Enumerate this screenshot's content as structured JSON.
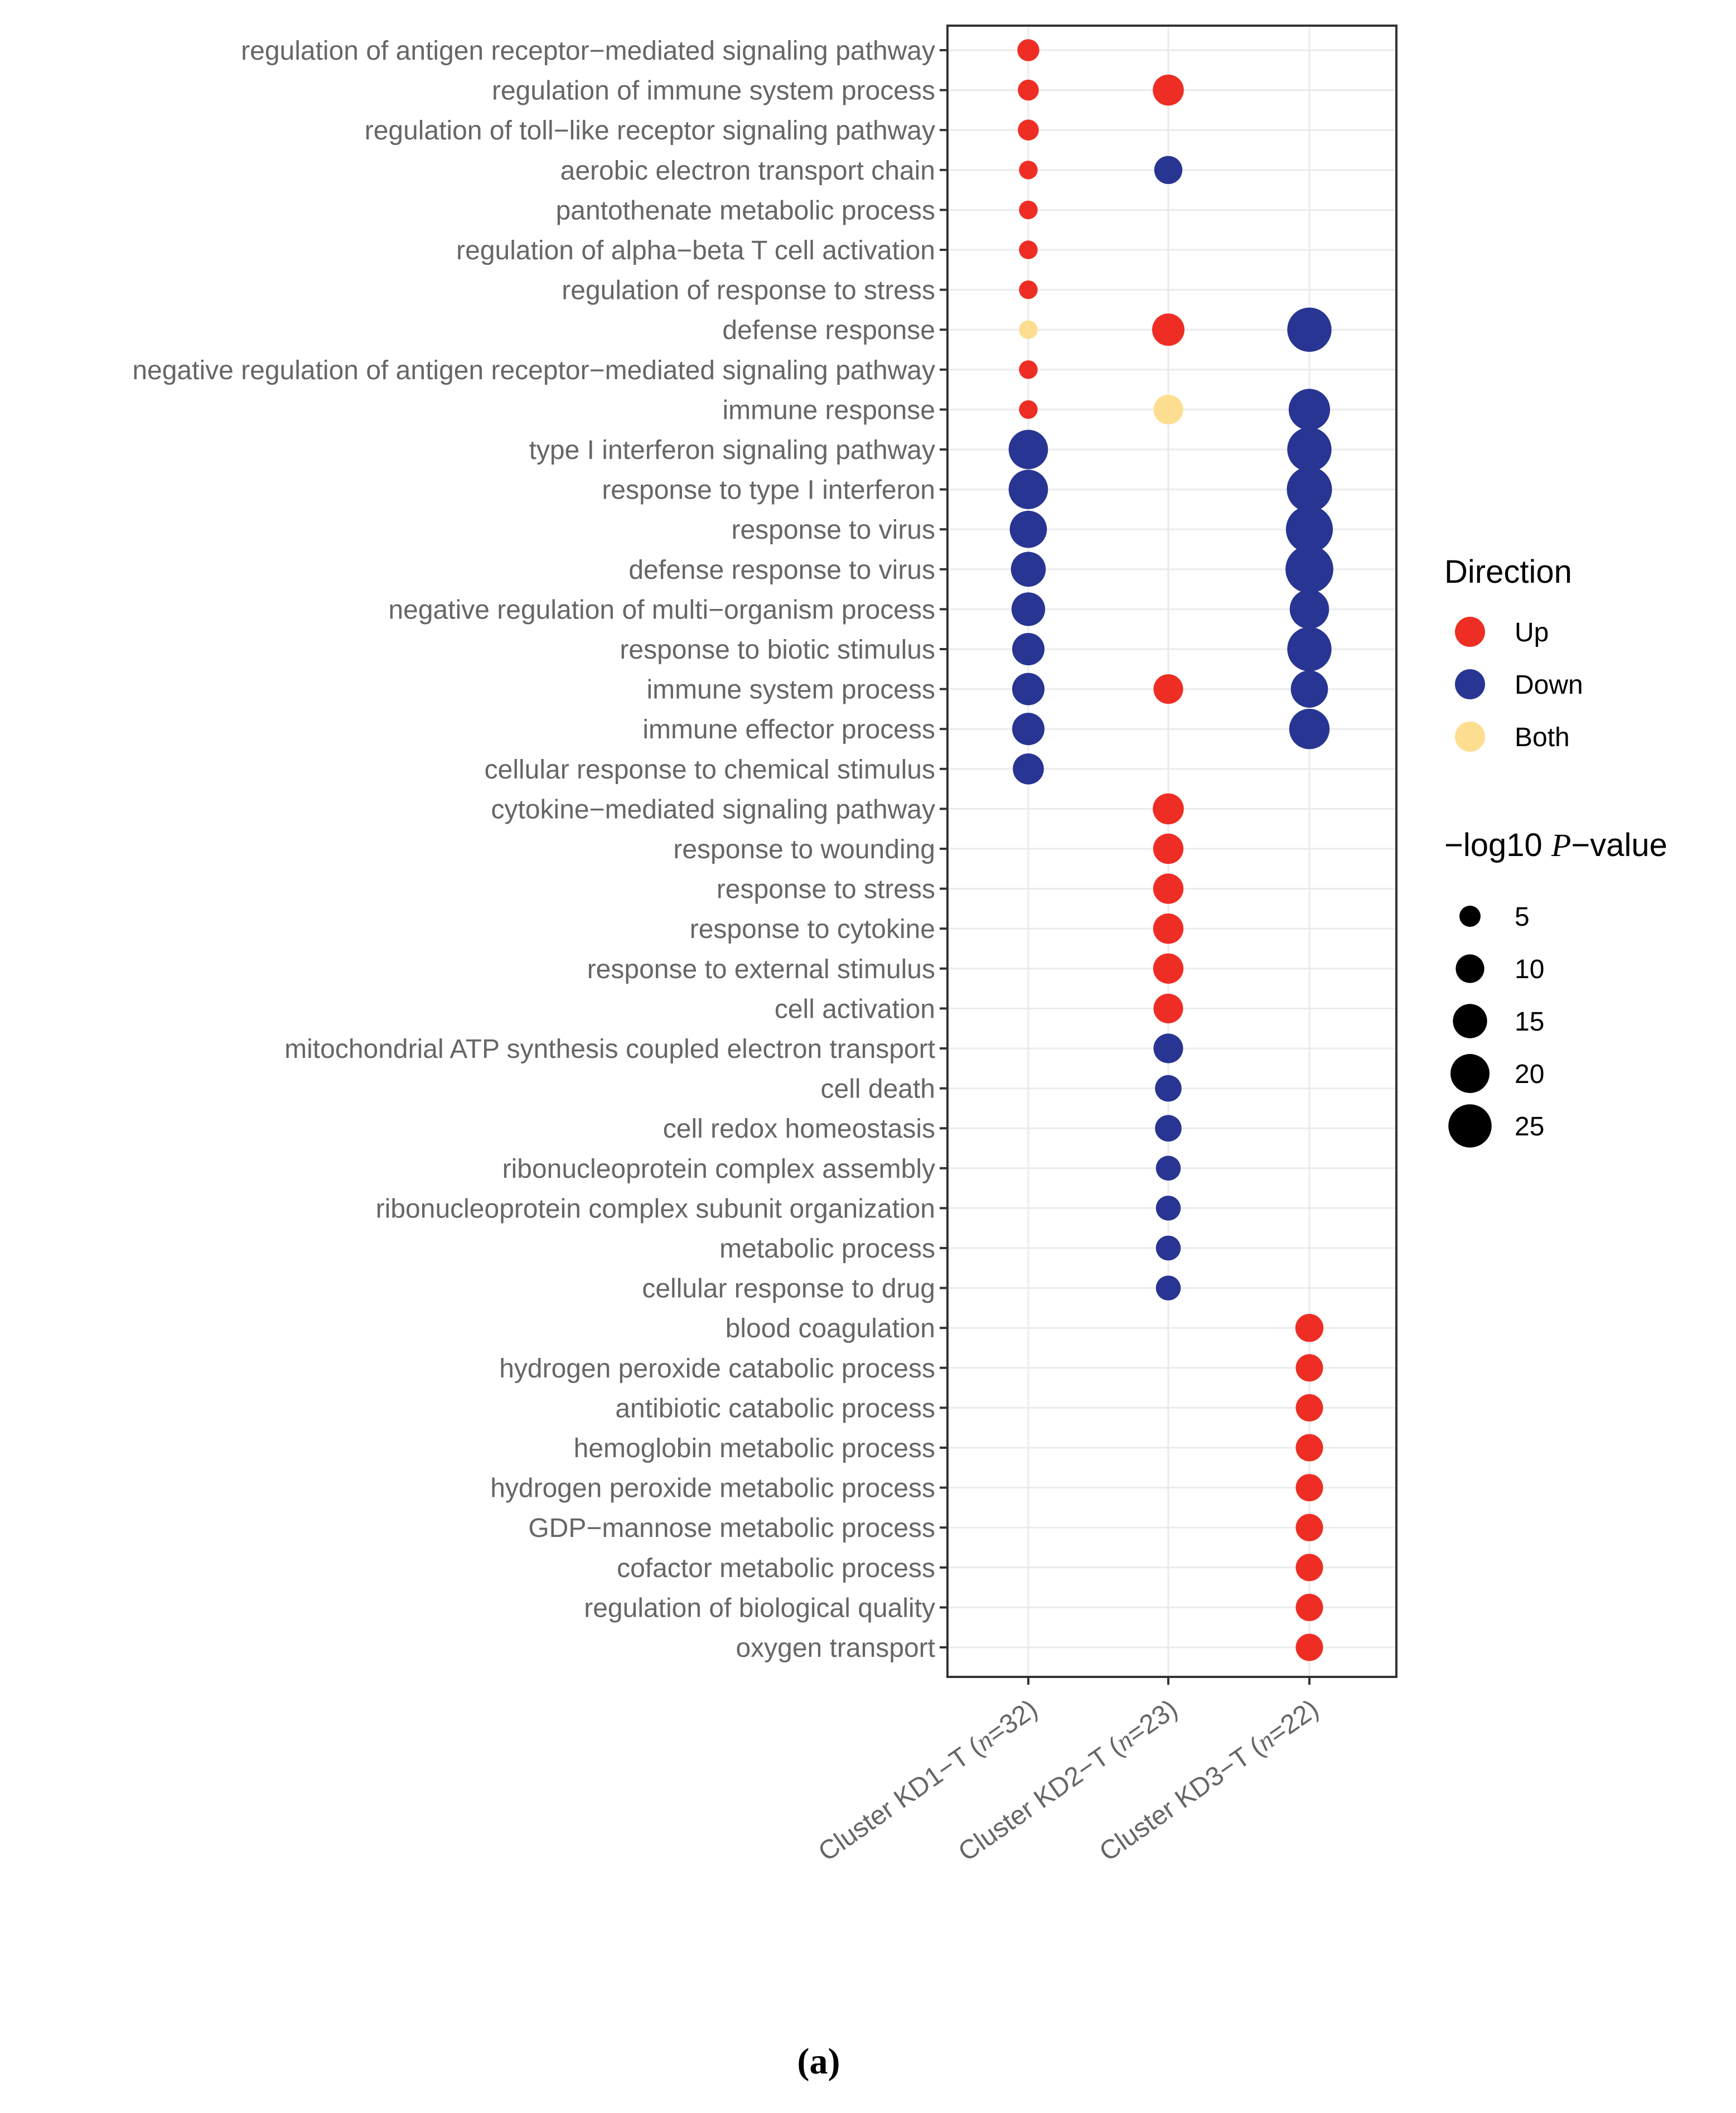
{
  "chart_data": {
    "type": "scatter",
    "caption": "(a)",
    "categories_y": [
      "regulation of antigen receptor−mediated signaling pathway",
      "regulation of immune system process",
      "regulation of toll−like receptor signaling pathway",
      "aerobic electron transport chain",
      "pantothenate metabolic process",
      "regulation of alpha−beta T cell activation",
      "regulation of response to stress",
      "defense response",
      "negative regulation of antigen receptor−mediated signaling pathway",
      "immune response",
      "type I interferon signaling pathway",
      "response to type I interferon",
      "response to virus",
      "defense response to virus",
      "negative regulation of multi−organism process",
      "response to biotic stimulus",
      "immune system process",
      "immune effector process",
      "cellular response to chemical stimulus",
      "cytokine−mediated signaling pathway",
      "response to wounding",
      "response to stress",
      "response to cytokine",
      "response to external stimulus",
      "cell activation",
      "mitochondrial ATP synthesis coupled electron transport",
      "cell death",
      "cell redox homeostasis",
      "ribonucleoprotein complex assembly",
      "ribonucleoprotein complex subunit organization",
      "metabolic process",
      "cellular response to drug",
      "blood coagulation",
      "hydrogen peroxide catabolic process",
      "antibiotic catabolic process",
      "hemoglobin metabolic process",
      "hydrogen peroxide metabolic process",
      "GDP−mannose metabolic process",
      "cofactor metabolic process",
      "regulation of biological quality",
      "oxygen transport"
    ],
    "categories_x": [
      {
        "prefix": "Cluster KD1−T (",
        "n_symbol": "n",
        "suffix": "=32)"
      },
      {
        "prefix": "Cluster KD2−T (",
        "n_symbol": "n",
        "suffix": "=23)"
      },
      {
        "prefix": "Cluster KD3−T (",
        "n_symbol": "n",
        "suffix": "=22)"
      }
    ],
    "legend_direction": {
      "title": "Direction",
      "entries": [
        {
          "label": "Up",
          "color": "#EE2E24"
        },
        {
          "label": "Down",
          "color": "#283593"
        },
        {
          "label": "Both",
          "color": "#FDDD8F"
        }
      ]
    },
    "legend_size": {
      "title_prefix": "−log10 ",
      "title_symbol": "P",
      "title_suffix": "−value",
      "breaks": [
        5,
        10,
        15,
        20,
        25
      ]
    },
    "size_range": [
      2,
      27
    ],
    "points": [
      {
        "term": 0,
        "cluster": 0,
        "direction": "Up",
        "neglog10p": 4.5
      },
      {
        "term": 1,
        "cluster": 0,
        "direction": "Up",
        "neglog10p": 4
      },
      {
        "term": 2,
        "cluster": 0,
        "direction": "Up",
        "neglog10p": 4
      },
      {
        "term": 3,
        "cluster": 0,
        "direction": "Up",
        "neglog10p": 3
      },
      {
        "term": 4,
        "cluster": 0,
        "direction": "Up",
        "neglog10p": 3
      },
      {
        "term": 5,
        "cluster": 0,
        "direction": "Up",
        "neglog10p": 3
      },
      {
        "term": 6,
        "cluster": 0,
        "direction": "Up",
        "neglog10p": 3
      },
      {
        "term": 7,
        "cluster": 0,
        "direction": "Both",
        "neglog10p": 3
      },
      {
        "term": 8,
        "cluster": 0,
        "direction": "Up",
        "neglog10p": 3
      },
      {
        "term": 9,
        "cluster": 0,
        "direction": "Up",
        "neglog10p": 3
      },
      {
        "term": 10,
        "cluster": 0,
        "direction": "Down",
        "neglog10p": 17
      },
      {
        "term": 11,
        "cluster": 0,
        "direction": "Down",
        "neglog10p": 17
      },
      {
        "term": 12,
        "cluster": 0,
        "direction": "Down",
        "neglog10p": 15
      },
      {
        "term": 13,
        "cluster": 0,
        "direction": "Down",
        "neglog10p": 13
      },
      {
        "term": 14,
        "cluster": 0,
        "direction": "Down",
        "neglog10p": 12
      },
      {
        "term": 15,
        "cluster": 0,
        "direction": "Down",
        "neglog10p": 11
      },
      {
        "term": 16,
        "cluster": 0,
        "direction": "Down",
        "neglog10p": 11
      },
      {
        "term": 17,
        "cluster": 0,
        "direction": "Down",
        "neglog10p": 11
      },
      {
        "term": 18,
        "cluster": 0,
        "direction": "Down",
        "neglog10p": 10
      },
      {
        "term": 1,
        "cluster": 1,
        "direction": "Up",
        "neglog10p": 10
      },
      {
        "term": 3,
        "cluster": 1,
        "direction": "Down",
        "neglog10p": 8
      },
      {
        "term": 7,
        "cluster": 1,
        "direction": "Up",
        "neglog10p": 11
      },
      {
        "term": 9,
        "cluster": 1,
        "direction": "Both",
        "neglog10p": 9
      },
      {
        "term": 16,
        "cluster": 1,
        "direction": "Up",
        "neglog10p": 9
      },
      {
        "term": 19,
        "cluster": 1,
        "direction": "Up",
        "neglog10p": 10
      },
      {
        "term": 20,
        "cluster": 1,
        "direction": "Up",
        "neglog10p": 9.5
      },
      {
        "term": 21,
        "cluster": 1,
        "direction": "Up",
        "neglog10p": 9.5
      },
      {
        "term": 22,
        "cluster": 1,
        "direction": "Up",
        "neglog10p": 9.5
      },
      {
        "term": 23,
        "cluster": 1,
        "direction": "Up",
        "neglog10p": 9.5
      },
      {
        "term": 24,
        "cluster": 1,
        "direction": "Up",
        "neglog10p": 9
      },
      {
        "term": 25,
        "cluster": 1,
        "direction": "Down",
        "neglog10p": 9
      },
      {
        "term": 26,
        "cluster": 1,
        "direction": "Down",
        "neglog10p": 7
      },
      {
        "term": 27,
        "cluster": 1,
        "direction": "Down",
        "neglog10p": 7
      },
      {
        "term": 28,
        "cluster": 1,
        "direction": "Down",
        "neglog10p": 6
      },
      {
        "term": 29,
        "cluster": 1,
        "direction": "Down",
        "neglog10p": 6
      },
      {
        "term": 30,
        "cluster": 1,
        "direction": "Down",
        "neglog10p": 6
      },
      {
        "term": 31,
        "cluster": 1,
        "direction": "Down",
        "neglog10p": 6
      },
      {
        "term": 7,
        "cluster": 2,
        "direction": "Down",
        "neglog10p": 22
      },
      {
        "term": 9,
        "cluster": 2,
        "direction": "Down",
        "neglog10p": 19
      },
      {
        "term": 10,
        "cluster": 2,
        "direction": "Down",
        "neglog10p": 22
      },
      {
        "term": 11,
        "cluster": 2,
        "direction": "Down",
        "neglog10p": 23
      },
      {
        "term": 12,
        "cluster": 2,
        "direction": "Down",
        "neglog10p": 25
      },
      {
        "term": 13,
        "cluster": 2,
        "direction": "Down",
        "neglog10p": 26
      },
      {
        "term": 14,
        "cluster": 2,
        "direction": "Down",
        "neglog10p": 17
      },
      {
        "term": 15,
        "cluster": 2,
        "direction": "Down",
        "neglog10p": 22
      },
      {
        "term": 16,
        "cluster": 2,
        "direction": "Down",
        "neglog10p": 15
      },
      {
        "term": 17,
        "cluster": 2,
        "direction": "Down",
        "neglog10p": 18
      },
      {
        "term": 32,
        "cluster": 2,
        "direction": "Up",
        "neglog10p": 8
      },
      {
        "term": 33,
        "cluster": 2,
        "direction": "Up",
        "neglog10p": 7.5
      },
      {
        "term": 34,
        "cluster": 2,
        "direction": "Up",
        "neglog10p": 7.5
      },
      {
        "term": 35,
        "cluster": 2,
        "direction": "Up",
        "neglog10p": 7.5
      },
      {
        "term": 36,
        "cluster": 2,
        "direction": "Up",
        "neglog10p": 7.5
      },
      {
        "term": 37,
        "cluster": 2,
        "direction": "Up",
        "neglog10p": 7.5
      },
      {
        "term": 38,
        "cluster": 2,
        "direction": "Up",
        "neglog10p": 7.5
      },
      {
        "term": 39,
        "cluster": 2,
        "direction": "Up",
        "neglog10p": 7.5
      },
      {
        "term": 40,
        "cluster": 2,
        "direction": "Up",
        "neglog10p": 7.5
      }
    ],
    "grid": true,
    "legend_position": "right"
  }
}
